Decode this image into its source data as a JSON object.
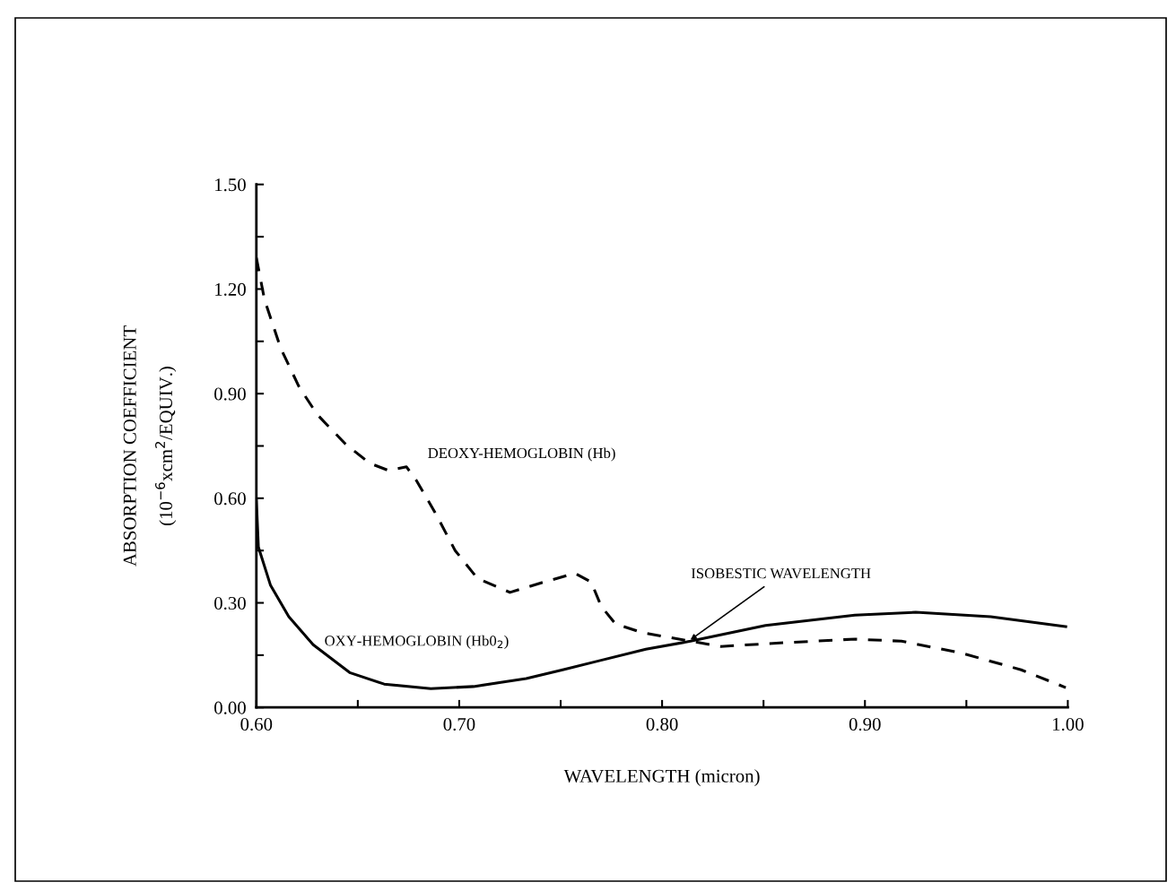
{
  "chart_data": {
    "type": "line",
    "xlabel": "WAVELENGTH (micron)",
    "ylabel": "ABSORPTION COEFFICIENT\n(10$^{−6}$xcm$^{2}$/EQUIV.)",
    "xlim": [
      0.6,
      1.0
    ],
    "ylim": [
      0,
      1.5
    ],
    "xticks": [
      {
        "value": 0.6,
        "label": "0.60"
      },
      {
        "value": 0.65,
        "label": null
      },
      {
        "value": 0.7,
        "label": "0.70"
      },
      {
        "value": 0.75,
        "label": null
      },
      {
        "value": 0.8,
        "label": "0.80"
      },
      {
        "value": 0.85,
        "label": null
      },
      {
        "value": 0.9,
        "label": "0.90"
      },
      {
        "value": 0.95,
        "label": null
      },
      {
        "value": 1.0,
        "label": "1.00"
      }
    ],
    "yticks": [
      {
        "value": 0,
        "label": "0.00"
      },
      {
        "value": 0.15,
        "label": null
      },
      {
        "value": 0.3,
        "label": "0.30"
      },
      {
        "value": 0.45,
        "label": null
      },
      {
        "value": 0.6,
        "label": "0.60"
      },
      {
        "value": 0.75,
        "label": null
      },
      {
        "value": 0.9,
        "label": "0.90"
      },
      {
        "value": 1.05,
        "label": null
      },
      {
        "value": 1.2,
        "label": "1.20"
      },
      {
        "value": 1.35,
        "label": null
      },
      {
        "value": 1.5,
        "label": "1.50"
      }
    ],
    "grid": false,
    "legend": false,
    "marker": "none",
    "series": [
      {
        "name": "DEOXY-HEMOGLOBIN (Hb)",
        "color": "#000000",
        "line_style": "dashed",
        "x": [
          0.6,
          0.604,
          0.612,
          0.621,
          0.63,
          0.644,
          0.656,
          0.665,
          0.674,
          0.679,
          0.688,
          0.698,
          0.709,
          0.725,
          0.742,
          0.757,
          0.765,
          0.77,
          0.777,
          0.79,
          0.814,
          0.829,
          0.858,
          0.895,
          0.918,
          0.947,
          0.977,
          0.999
        ],
        "values": [
          1.29,
          1.17,
          1.03,
          0.92,
          0.84,
          0.755,
          0.7,
          0.68,
          0.69,
          0.65,
          0.56,
          0.45,
          0.37,
          0.33,
          0.36,
          0.385,
          0.36,
          0.29,
          0.24,
          0.215,
          0.19,
          0.175,
          0.185,
          0.196,
          0.19,
          0.157,
          0.108,
          0.057
        ]
      },
      {
        "name": "OXY-HEMOGLOBIN (Hb0$_{2}$)",
        "color": "#000000",
        "line_style": "solid",
        "x": [
          0.6,
          0.601,
          0.607,
          0.616,
          0.628,
          0.646,
          0.663,
          0.686,
          0.707,
          0.733,
          0.751,
          0.769,
          0.792,
          0.814,
          0.851,
          0.895,
          0.925,
          0.962,
          0.999
        ],
        "values": [
          0.595,
          0.46,
          0.35,
          0.26,
          0.18,
          0.1,
          0.067,
          0.054,
          0.06,
          0.083,
          0.108,
          0.134,
          0.167,
          0.19,
          0.235,
          0.265,
          0.273,
          0.26,
          0.232
        ]
      }
    ],
    "annotations": [
      {
        "text": "ISOBESTIC WAVELENGTH",
        "x": 0.813,
        "y": 0.19
      }
    ]
  }
}
